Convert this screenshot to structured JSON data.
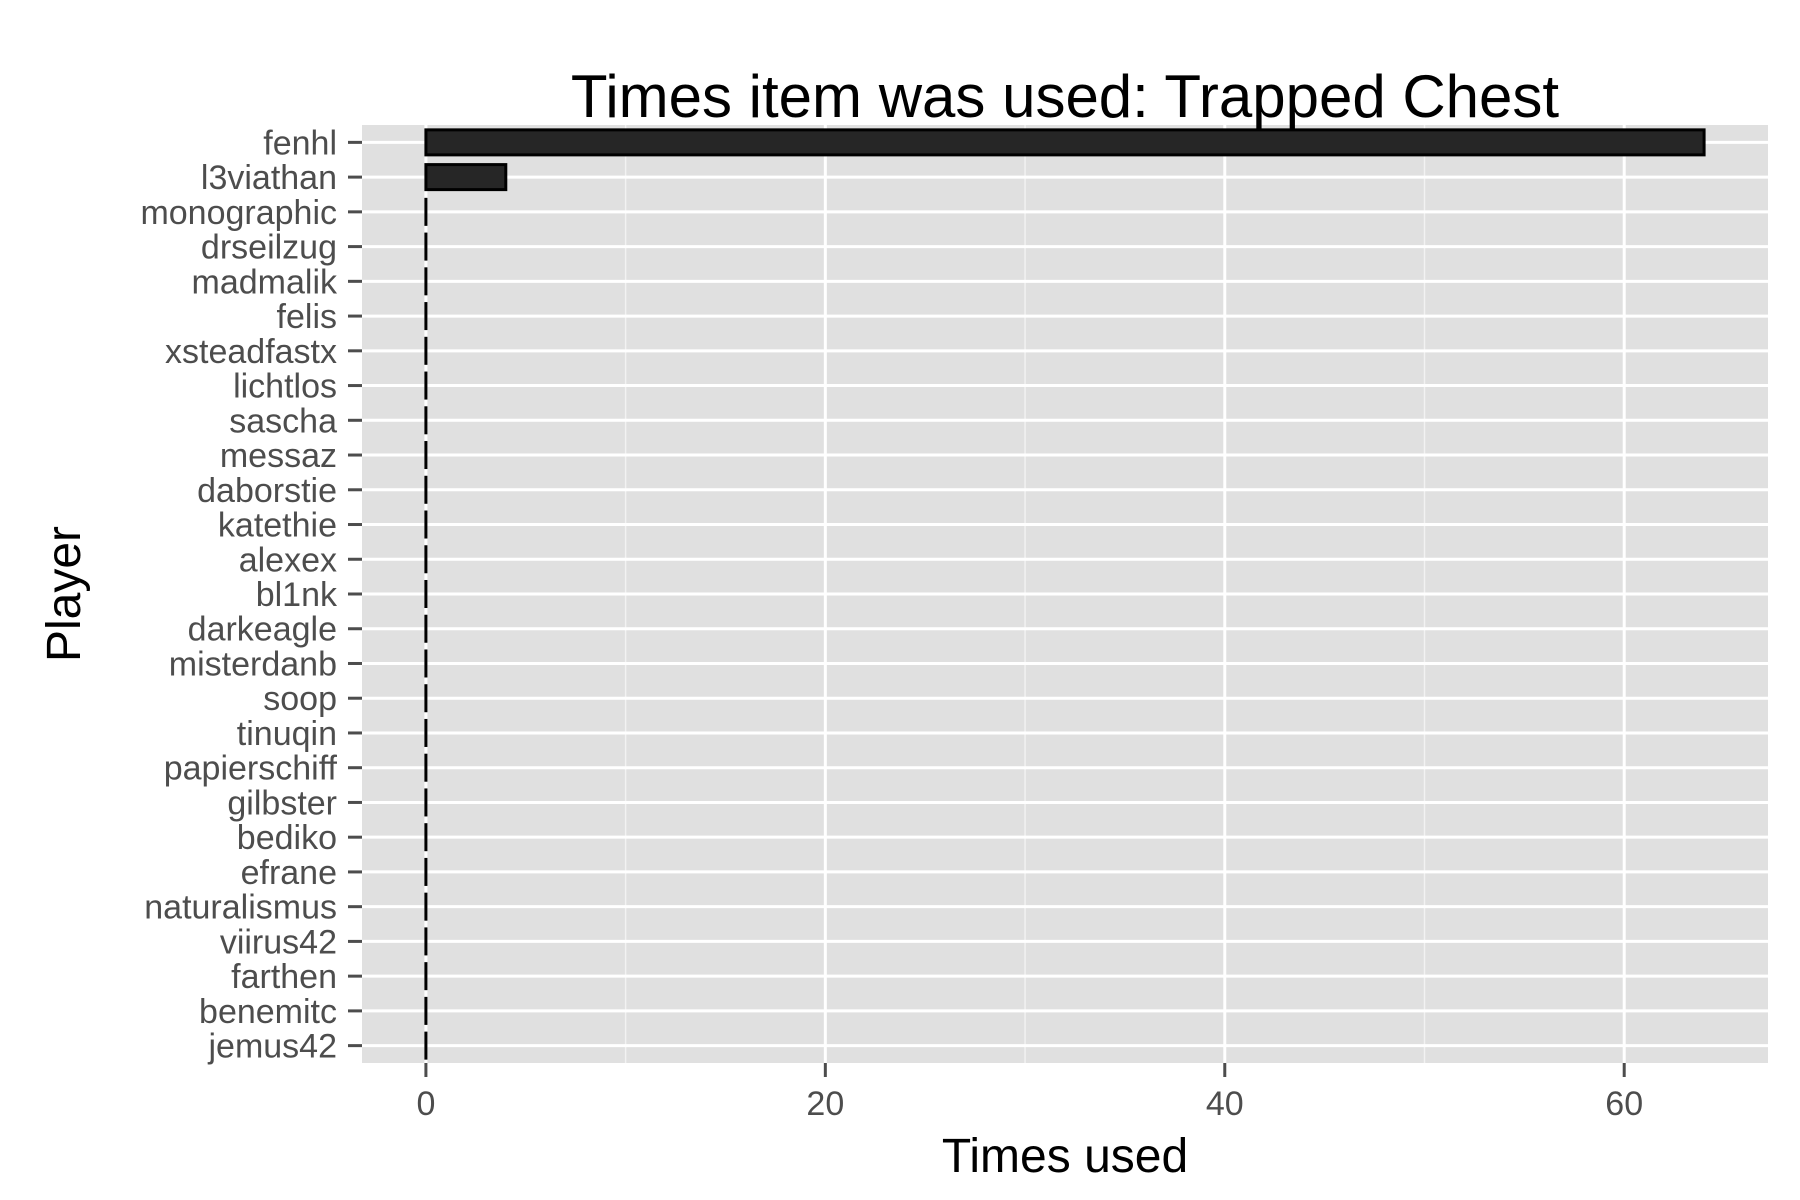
{
  "chart_data": {
    "type": "bar",
    "orientation": "horizontal",
    "title": "Times item was used: Trapped Chest",
    "xlabel": "Times used",
    "ylabel": "Player",
    "categories": [
      "fenhl",
      "l3viathan",
      "monographic",
      "drseilzug",
      "madmalik",
      "felis",
      "xsteadfastx",
      "lichtlos",
      "sascha",
      "messaz",
      "daborstie",
      "katethie",
      "alexex",
      "bl1nk",
      "darkeagle",
      "misterdanb",
      "soop",
      "tinuqin",
      "papierschiff",
      "gilbster",
      "bediko",
      "efrane",
      "naturalismus",
      "viirus42",
      "farthen",
      "benemitc",
      "jemus42"
    ],
    "values": [
      64,
      4,
      0,
      0,
      0,
      0,
      0,
      0,
      0,
      0,
      0,
      0,
      0,
      0,
      0,
      0,
      0,
      0,
      0,
      0,
      0,
      0,
      0,
      0,
      0,
      0,
      0
    ],
    "xlim": [
      -3.2,
      67.2
    ],
    "x_ticks": [
      0,
      20,
      40,
      60
    ],
    "x_tick_labels": [
      "0",
      "20",
      "40",
      "60"
    ],
    "grid": true,
    "colors": {
      "panel": "#e0e0e0",
      "grid": "#ffffff",
      "bar_fill": "#262626",
      "bar_stroke": "#000000",
      "tick_label": "#4d4d4d",
      "tick_mark": "#4d4d4d"
    }
  }
}
